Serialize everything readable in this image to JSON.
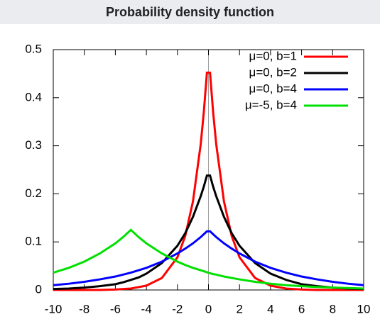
{
  "chart_data": {
    "type": "line",
    "title": "Probability density function",
    "x": [
      -10,
      -9,
      -8,
      -7,
      -6,
      -5.5,
      -5,
      -4.5,
      -4,
      -3,
      -2,
      -1.5,
      -1,
      -0.5,
      -0.3,
      -0.1,
      0.1,
      0.3,
      0.5,
      1,
      1.5,
      2,
      3,
      4,
      5,
      6,
      7,
      8,
      9,
      10
    ],
    "series": [
      {
        "name": "μ=0, b=1",
        "color": "#ff0000",
        "values": [
          0,
          0,
          0,
          0,
          0.001,
          0.002,
          0.003,
          0.006,
          0.009,
          0.025,
          0.068,
          0.112,
          0.184,
          0.303,
          0.37,
          0.452,
          0.452,
          0.37,
          0.303,
          0.184,
          0.112,
          0.068,
          0.025,
          0.009,
          0.003,
          0.001,
          0,
          0,
          0,
          0
        ]
      },
      {
        "name": "μ=0, b=2",
        "color": "#000000",
        "values": [
          0.002,
          0.003,
          0.005,
          0.008,
          0.012,
          0.016,
          0.021,
          0.026,
          0.034,
          0.056,
          0.092,
          0.118,
          0.152,
          0.195,
          0.215,
          0.238,
          0.238,
          0.215,
          0.195,
          0.152,
          0.118,
          0.092,
          0.056,
          0.034,
          0.021,
          0.012,
          0.008,
          0.005,
          0.003,
          0.002
        ]
      },
      {
        "name": "μ=0, b=4",
        "color": "#0000ff",
        "values": [
          0.01,
          0.013,
          0.017,
          0.022,
          0.028,
          0.032,
          0.036,
          0.041,
          0.046,
          0.059,
          0.076,
          0.086,
          0.097,
          0.11,
          0.116,
          0.122,
          0.122,
          0.116,
          0.11,
          0.097,
          0.086,
          0.076,
          0.059,
          0.046,
          0.036,
          0.028,
          0.022,
          0.017,
          0.013,
          0.01
        ]
      },
      {
        "name": "μ=-5, b=4",
        "color": "#00e000",
        "values": [
          0.036,
          0.046,
          0.059,
          0.076,
          0.097,
          0.11,
          0.125,
          0.11,
          0.097,
          0.076,
          0.059,
          0.052,
          0.046,
          0.041,
          0.039,
          0.037,
          0.035,
          0.033,
          0.032,
          0.028,
          0.025,
          0.022,
          0.017,
          0.013,
          0.01,
          0.008,
          0.006,
          0.005,
          0.004,
          0.003
        ]
      }
    ],
    "xlim": [
      -10,
      10
    ],
    "xticks": [
      -10,
      -8,
      -6,
      -4,
      -2,
      0,
      2,
      4,
      6,
      8,
      10
    ],
    "ylim": [
      0,
      0.5
    ],
    "yticks": [
      0,
      0.1,
      0.2,
      0.3,
      0.4,
      0.5
    ],
    "zero_axis": true,
    "legend": "upper-right"
  }
}
